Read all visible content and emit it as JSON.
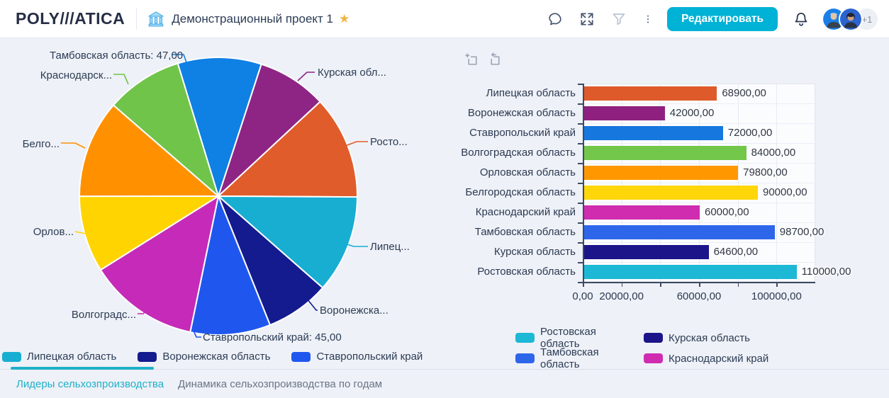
{
  "header": {
    "logo": "POLY///ATICA",
    "title": "Демонстрационный проект 1",
    "edit_button": "Редактировать",
    "extra_users": "+1",
    "icons": [
      "bank-icon",
      "star-icon",
      "chat-icon",
      "fullscreen-icon",
      "filter-icon",
      "kebab-menu-icon",
      "bell-icon"
    ]
  },
  "colors": {
    "accent_teal": "#00b2d6",
    "tab_active": "#1fb0c8",
    "text_dark": "#2c3c55",
    "page_bg": "#eef1f7"
  },
  "tabs": [
    {
      "label": "Лидеры сельхозпроизводства",
      "active": true
    },
    {
      "label": "Динамика сельхозпроизводства по годам",
      "active": false
    }
  ],
  "bar_toolbar_icons": [
    "crop-plus-icon",
    "crop-undo-icon"
  ],
  "chart_data": [
    {
      "type": "pie",
      "start_angle_deg": -17,
      "note": "values with estimated:true are read from slice angles; only 47,00 and 45,00 are labeled on screen",
      "slices": [
        {
          "name": "Тамбовская область",
          "value": 47,
          "estimated": false,
          "color": "#0f80e4",
          "callout_label": "Тамбовская область: 47,00"
        },
        {
          "name": "Курская область",
          "value": 39,
          "estimated": true,
          "color": "#8e2585",
          "callout_label": "Курская обл..."
        },
        {
          "name": "Ростовская область",
          "value": 58,
          "estimated": true,
          "color": "#e05c2b",
          "callout_label": "Росто..."
        },
        {
          "name": "Липецкая область",
          "value": 55,
          "estimated": true,
          "color": "#17aed2",
          "callout_label": "Липец..."
        },
        {
          "name": "Воронежская область",
          "value": 36,
          "estimated": true,
          "color": "#141b8f",
          "callout_label": "Воронежска..."
        },
        {
          "name": "Ставропольский край",
          "value": 45,
          "estimated": false,
          "color": "#1f57ee",
          "callout_label": "Ставропольский край: 45,00"
        },
        {
          "name": "Волгоградская область",
          "value": 62,
          "estimated": true,
          "color": "#c52bb8",
          "callout_label": "Волгоградс..."
        },
        {
          "name": "Орловская область",
          "value": 43,
          "estimated": true,
          "color": "#ffd400",
          "callout_label": "Орлов..."
        },
        {
          "name": "Белгородская область",
          "value": 55,
          "estimated": true,
          "color": "#ff9100",
          "callout_label": "Белго..."
        },
        {
          "name": "Краснодарский край",
          "value": 43,
          "estimated": true,
          "color": "#70c44a",
          "callout_label": "Краснодарск..."
        }
      ],
      "legend": [
        {
          "label": "Липецкая область",
          "color": "#17aed2"
        },
        {
          "label": "Воронежская область",
          "color": "#141b8f"
        },
        {
          "label": "Ставропольский край",
          "color": "#1f57ee"
        }
      ]
    },
    {
      "type": "bar",
      "orientation": "horizontal",
      "categories": [
        "Липецкая область",
        "Воронежская область",
        "Ставропольский край",
        "Волгоградская область",
        "Орловская область",
        "Белгородская область",
        "Краснодарский край",
        "Тамбовская область",
        "Курская область",
        "Ростовская область"
      ],
      "values": [
        68900,
        42000,
        72000,
        84000,
        79800,
        90000,
        60000,
        98700,
        64600,
        110000
      ],
      "value_labels": [
        "68900,00",
        "42000,00",
        "72000,00",
        "84000,00",
        "79800,00",
        "90000,00",
        "60000,00",
        "98700,00",
        "64600,00",
        "110000,00"
      ],
      "colors": [
        "#df5a2b",
        "#8f2080",
        "#1678de",
        "#72c64a",
        "#ff9800",
        "#ffd60a",
        "#d02cb0",
        "#2e66ea",
        "#1c1489",
        "#1cb8d6"
      ],
      "xlim": [
        0,
        120000
      ],
      "grid_step": 20000,
      "x_ticks": [
        {
          "value": 0,
          "label": "0,00"
        },
        {
          "value": 20000,
          "label": "20000,00"
        },
        {
          "value": 60000,
          "label": "60000,00"
        },
        {
          "value": 100000,
          "label": "100000,00"
        }
      ],
      "legend": [
        {
          "label": "Ростовская область",
          "color": "#1cb8d6"
        },
        {
          "label": "Курская область",
          "color": "#1c1489"
        },
        {
          "label": "Тамбовская область",
          "color": "#2e66ea"
        },
        {
          "label": "Краснодарский край",
          "color": "#d02cb0"
        }
      ]
    }
  ]
}
